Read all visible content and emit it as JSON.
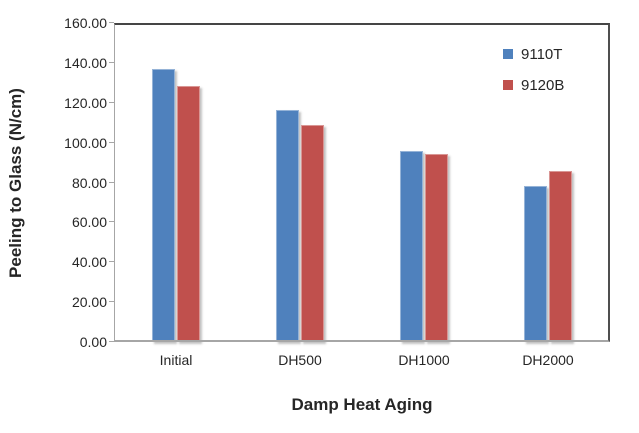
{
  "window": {
    "background": "#ffffff"
  },
  "chart_data": {
    "type": "bar",
    "title": "",
    "categories": [
      "Initial",
      "DH500",
      "DH1000",
      "DH2000"
    ],
    "series": [
      {
        "name": "9110T",
        "color": "#4f81bd",
        "border_color": "#95b3d7",
        "values": [
          137,
          116.5,
          96,
          78
        ]
      },
      {
        "name": "9120B",
        "color": "#c0504d",
        "border_color": "#d99694",
        "values": [
          128.5,
          109,
          94.5,
          86
        ]
      }
    ],
    "xlabel": "Damp Heat Aging",
    "ylabel": "Peeling to Glass (N/cm)",
    "ylim": [
      0,
      160
    ],
    "ytick_interval": 20,
    "ytick_labels": [
      "0.00",
      "20.00",
      "40.00",
      "60.00",
      "80.00",
      "100.00",
      "120.00",
      "140.00",
      "160.00"
    ],
    "grid": false,
    "legend": {
      "position": "top-right",
      "entries": [
        "9110T",
        "9120B"
      ]
    },
    "axis_color": "#a6a6a6",
    "frame_dark_color": "#4f4f4f",
    "text_color": "#262626"
  }
}
